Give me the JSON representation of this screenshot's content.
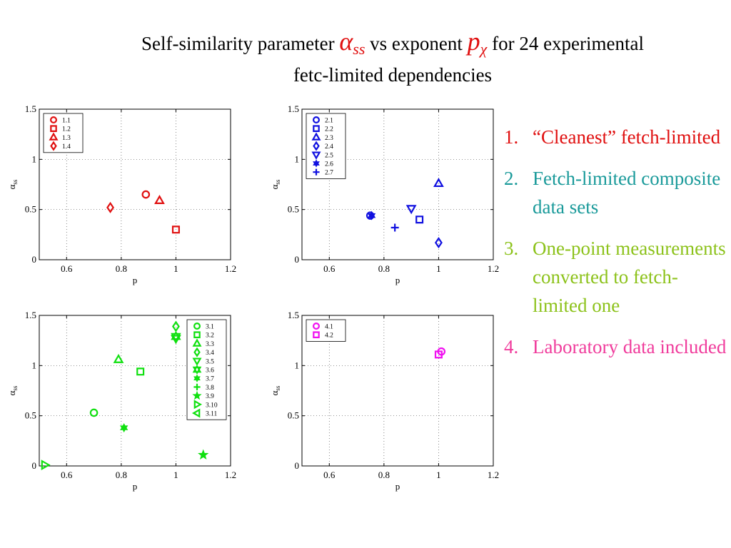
{
  "title": {
    "part1": "Self-similarity parameter ",
    "alpha_symbol": "α",
    "alpha_sub": "ss",
    "part2": " vs exponent ",
    "p_symbol": "p",
    "p_sub": "χ",
    "part3": " for 24 experimental",
    "line2": "fetc-limited dependencies",
    "symbol_color": "#e01010"
  },
  "notes": [
    {
      "number": "1.",
      "text": "“Cleanest” fetch-limited",
      "color": "#e01010"
    },
    {
      "number": "2.",
      "text": "Fetch-limited composite data sets",
      "color": "#1a9a9a"
    },
    {
      "number": "3.",
      "text": "One-point measurements converted to fetch-limited one",
      "color": "#8cc21a"
    },
    {
      "number": "4.",
      "text": "Laboratory data included",
      "color": "#f03c9c"
    }
  ],
  "chart_data": [
    {
      "type": "scatter",
      "color": "#e01010",
      "xlabel": "p",
      "ylabel": "α",
      "ylabel_sub": "ss",
      "xlim": [
        0.5,
        1.2
      ],
      "ylim": [
        0,
        1.5
      ],
      "xticks": [
        0.6,
        0.8,
        1,
        1.2
      ],
      "xtick_labels": [
        "0.6",
        "0.8",
        "1",
        "1.2"
      ],
      "yticks": [
        0,
        0.5,
        1,
        1.5
      ],
      "ytick_labels": [
        "0",
        "0.5",
        "1",
        "1.5"
      ],
      "grid": true,
      "legend_position": "top-left",
      "series": [
        {
          "name": "1.1",
          "marker": "circle",
          "x": [
            0.89
          ],
          "y": [
            0.65
          ]
        },
        {
          "name": "1.2",
          "marker": "square",
          "x": [
            1.0
          ],
          "y": [
            0.3
          ]
        },
        {
          "name": "1.3",
          "marker": "triangle-up",
          "x": [
            0.94
          ],
          "y": [
            0.59
          ]
        },
        {
          "name": "1.4",
          "marker": "diamond",
          "x": [
            0.76
          ],
          "y": [
            0.52
          ]
        }
      ]
    },
    {
      "type": "scatter",
      "color": "#1010e0",
      "xlabel": "p",
      "ylabel": "α",
      "ylabel_sub": "ss",
      "xlim": [
        0.5,
        1.2
      ],
      "ylim": [
        0,
        1.5
      ],
      "xticks": [
        0.6,
        0.8,
        1,
        1.2
      ],
      "xtick_labels": [
        "0.6",
        "0.8",
        "1",
        "1.2"
      ],
      "yticks": [
        0,
        0.5,
        1,
        1.5
      ],
      "ytick_labels": [
        "0",
        "0.5",
        "1",
        "1.5"
      ],
      "grid": true,
      "legend_position": "top-left",
      "series": [
        {
          "name": "2.1",
          "marker": "circle",
          "x": [
            0.75
          ],
          "y": [
            0.44
          ]
        },
        {
          "name": "2.2",
          "marker": "square",
          "x": [
            0.93
          ],
          "y": [
            0.4
          ]
        },
        {
          "name": "2.3",
          "marker": "triangle-up",
          "x": [
            1.0
          ],
          "y": [
            0.76
          ]
        },
        {
          "name": "2.4",
          "marker": "diamond",
          "x": [
            1.0
          ],
          "y": [
            0.17
          ]
        },
        {
          "name": "2.5",
          "marker": "triangle-down",
          "x": [
            0.9
          ],
          "y": [
            0.51
          ]
        },
        {
          "name": "2.6",
          "marker": "star6",
          "x": [
            0.755
          ],
          "y": [
            0.44
          ]
        },
        {
          "name": "2.7",
          "marker": "plus",
          "x": [
            0.84
          ],
          "y": [
            0.32
          ]
        }
      ]
    },
    {
      "type": "scatter",
      "color": "#10e010",
      "xlabel": "p",
      "ylabel": "α",
      "ylabel_sub": "ss",
      "xlim": [
        0.5,
        1.2
      ],
      "ylim": [
        0,
        1.5
      ],
      "xticks": [
        0.6,
        0.8,
        1,
        1.2
      ],
      "xtick_labels": [
        "0.6",
        "0.8",
        "1",
        "1.2"
      ],
      "yticks": [
        0,
        0.5,
        1,
        1.5
      ],
      "ytick_labels": [
        "0",
        "0.5",
        "1",
        "1.5"
      ],
      "grid": true,
      "legend_position": "top-right",
      "series": [
        {
          "name": "3.1",
          "marker": "circle",
          "x": [
            0.7
          ],
          "y": [
            0.53
          ]
        },
        {
          "name": "3.2",
          "marker": "square",
          "x": [
            0.87
          ],
          "y": [
            0.94
          ]
        },
        {
          "name": "3.3",
          "marker": "triangle-up",
          "x": [
            0.79
          ],
          "y": [
            1.06
          ]
        },
        {
          "name": "3.4",
          "marker": "diamond",
          "x": [
            1.0
          ],
          "y": [
            1.39
          ]
        },
        {
          "name": "3.5",
          "marker": "triangle-down",
          "x": [
            1.0
          ],
          "y": [
            1.27
          ]
        },
        {
          "name": "3.6",
          "marker": "hexagram",
          "x": [
            1.0
          ],
          "y": [
            1.29
          ]
        },
        {
          "name": "3.7",
          "marker": "star6",
          "x": [
            0.81
          ],
          "y": [
            0.38
          ]
        },
        {
          "name": "3.8",
          "marker": "plus",
          "x": [],
          "y": []
        },
        {
          "name": "3.9",
          "marker": "star5",
          "x": [
            1.1
          ],
          "y": [
            0.11
          ]
        },
        {
          "name": "3.10",
          "marker": "triangle-right",
          "x": [
            0.52
          ],
          "y": [
            0.01
          ]
        },
        {
          "name": "3.11",
          "marker": "triangle-left",
          "x": [],
          "y": []
        }
      ]
    },
    {
      "type": "scatter",
      "color": "#f010f0",
      "xlabel": "p",
      "ylabel": "α",
      "ylabel_sub": "ss",
      "xlim": [
        0.5,
        1.2
      ],
      "ylim": [
        0,
        1.5
      ],
      "xticks": [
        0.6,
        0.8,
        1,
        1.2
      ],
      "xtick_labels": [
        "0.6",
        "0.8",
        "1",
        "1.2"
      ],
      "yticks": [
        0,
        0.5,
        1,
        1.5
      ],
      "ytick_labels": [
        "0",
        "0.5",
        "1",
        "1.5"
      ],
      "grid": true,
      "legend_position": "top-left",
      "series": [
        {
          "name": "4.1",
          "marker": "circle",
          "x": [
            1.01
          ],
          "y": [
            1.14
          ]
        },
        {
          "name": "4.2",
          "marker": "square",
          "x": [
            1.0
          ],
          "y": [
            1.11
          ]
        }
      ]
    }
  ]
}
